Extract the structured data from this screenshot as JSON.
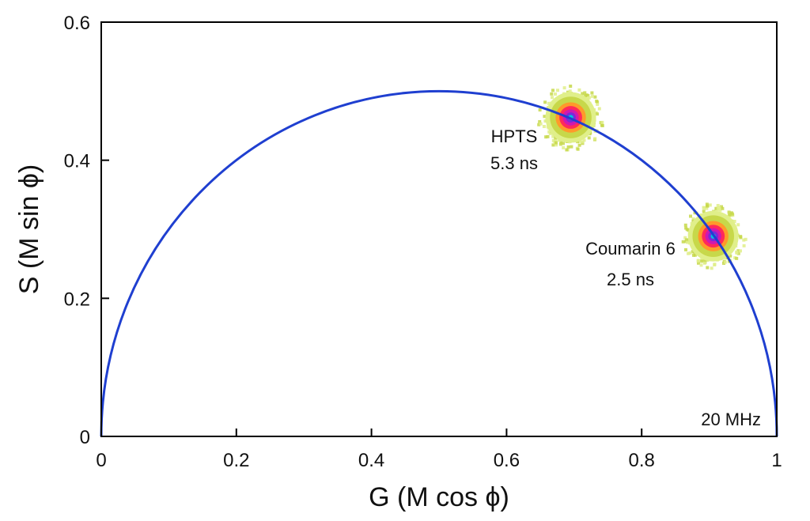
{
  "chart_data": {
    "type": "scatter",
    "title": "",
    "xlabel": "G (M cos ϕ)",
    "ylabel": "S (M sin ϕ)",
    "xlim": [
      0,
      1
    ],
    "ylim": [
      0,
      0.6
    ],
    "x_ticks": [
      {
        "value": 0,
        "label": "0"
      },
      {
        "value": 0.2,
        "label": "0.2"
      },
      {
        "value": 0.4,
        "label": "0.4"
      },
      {
        "value": 0.6,
        "label": "0.6"
      },
      {
        "value": 0.8,
        "label": "0.8"
      },
      {
        "value": 1,
        "label": "1"
      }
    ],
    "y_ticks": [
      {
        "value": 0,
        "label": "0"
      },
      {
        "value": 0.2,
        "label": "0.2"
      },
      {
        "value": 0.4,
        "label": "0.4"
      },
      {
        "value": 0.6,
        "label": "0.6"
      }
    ],
    "grid": false,
    "universal_circle": {
      "center": [
        0.5,
        0
      ],
      "radius": 0.5,
      "color": "#1f3fd0"
    },
    "clusters": [
      {
        "name": "HPTS",
        "lifetime": "5.3 ns",
        "x": 0.695,
        "y": 0.462,
        "spread": 0.03
      },
      {
        "name": "Coumarin 6",
        "lifetime": "2.5 ns",
        "x": 0.906,
        "y": 0.29,
        "spread": 0.03
      }
    ],
    "frequency_label": "20 MHz",
    "colormap": [
      "#e0ef8a",
      "#c7d84a",
      "#ff9a2a",
      "#ff2a5a",
      "#d018b0",
      "#7a2ad8",
      "#00c0e0"
    ]
  }
}
